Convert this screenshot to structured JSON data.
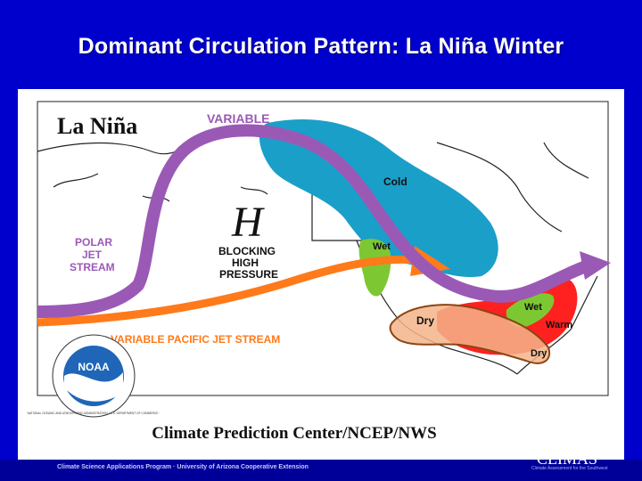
{
  "slide": {
    "title": "Dominant Circulation Pattern: La Niña Winter"
  },
  "map": {
    "heading": "La Niña",
    "labels": {
      "variable": "VARIABLE",
      "cold": "Cold",
      "high_symbol": "H",
      "blocking": [
        "BLOCKING",
        "HIGH",
        "PRESSURE"
      ],
      "polar_jet": [
        "POLAR",
        "JET",
        "STREAM"
      ],
      "wet_nw": "Wet",
      "wet_ohio": "Wet",
      "warm": "Warm",
      "dry_west": "Dry",
      "dry_gulf": "Dry",
      "pacific_jet": "VARIABLE PACIFIC JET STREAM"
    },
    "colors": {
      "cold_region": "#1a9fc9",
      "polar_jet": "#9b59b6",
      "pacific_jet": "#ff7a1a",
      "wet": "#7dc832",
      "warm": "#ff2020",
      "dry": "#f4b48a",
      "dry_outline": "#8b4513"
    }
  },
  "noaa": {
    "label": "NOAA",
    "ring_text": "NATIONAL OCEANIC AND ATMOSPHERIC ADMINISTRATION · U.S. DEPARTMENT OF COMMERCE ·"
  },
  "credit": "Climate Prediction Center/NCEP/NWS",
  "footer": {
    "text": "Climate Science Applications Program · University of Arizona Cooperative Extension",
    "logo": "CLIMAS",
    "logo_sub": "Climate Assessment for the Southwest"
  }
}
